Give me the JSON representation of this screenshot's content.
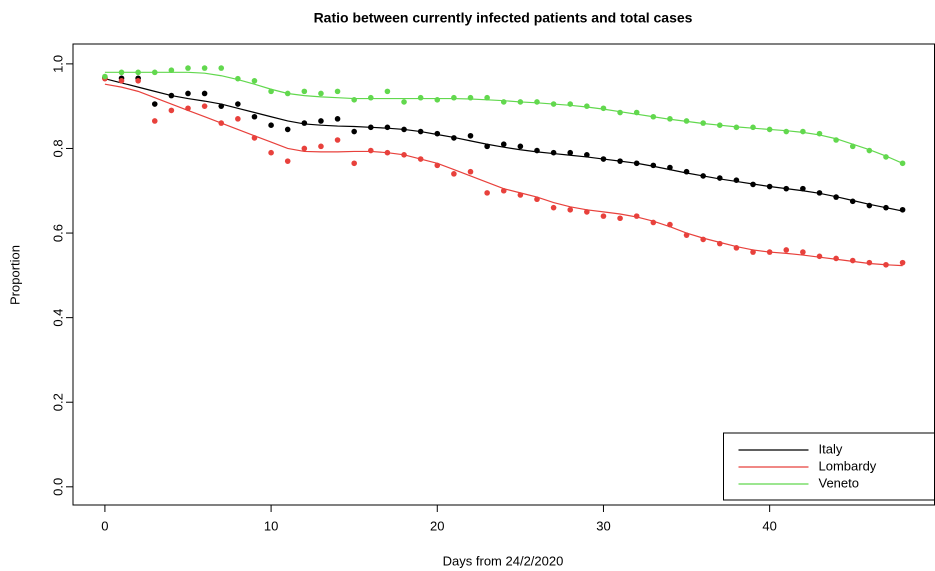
{
  "chart_data": {
    "type": "scatter",
    "title": "Ratio between currently infected patients and total cases",
    "x_label": "Days from 24/2/2020",
    "y_label": "Proportion",
    "x": [
      0,
      1,
      2,
      3,
      4,
      5,
      6,
      7,
      8,
      9,
      10,
      11,
      12,
      13,
      14,
      15,
      16,
      17,
      18,
      19,
      20,
      21,
      22,
      23,
      24,
      25,
      26,
      27,
      28,
      29,
      30,
      31,
      32,
      33,
      34,
      35,
      36,
      37,
      38,
      39,
      40,
      41,
      42,
      43,
      44,
      45,
      46,
      47,
      48
    ],
    "xlim": [
      -1.92,
      49.92
    ],
    "xticks": [
      0,
      10,
      20,
      30,
      40
    ],
    "ylim": [
      -0.043,
      1.047
    ],
    "yticks": [
      {
        "value": 0,
        "label": "0.0"
      },
      0.2,
      0.4,
      0.6,
      0.8,
      {
        "value": 1,
        "label": "1.0"
      }
    ],
    "legend": "bottom-right",
    "series": [
      {
        "name": "Italy",
        "color": "#000000",
        "values": [
          0.967,
          0.966,
          0.966,
          0.905,
          0.925,
          0.93,
          0.93,
          0.9,
          0.905,
          0.875,
          0.855,
          0.845,
          0.86,
          0.865,
          0.87,
          0.84,
          0.85,
          0.85,
          0.845,
          0.84,
          0.835,
          0.825,
          0.83,
          0.805,
          0.81,
          0.805,
          0.795,
          0.79,
          0.79,
          0.785,
          0.775,
          0.77,
          0.765,
          0.76,
          0.755,
          0.745,
          0.735,
          0.73,
          0.725,
          0.715,
          0.71,
          0.705,
          0.705,
          0.695,
          0.685,
          0.675,
          0.665,
          0.66,
          0.655
        ],
        "fit": [
          0.965,
          0.955,
          0.945,
          0.935,
          0.925,
          0.918,
          0.912,
          0.905,
          0.895,
          0.885,
          0.875,
          0.865,
          0.858,
          0.855,
          0.853,
          0.852,
          0.85,
          0.848,
          0.845,
          0.84,
          0.833,
          0.826,
          0.818,
          0.81,
          0.803,
          0.797,
          0.792,
          0.788,
          0.784,
          0.78,
          0.775,
          0.77,
          0.765,
          0.758,
          0.75,
          0.742,
          0.735,
          0.728,
          0.722,
          0.716,
          0.71,
          0.705,
          0.7,
          0.694,
          0.686,
          0.677,
          0.668,
          0.66,
          0.652
        ]
      },
      {
        "name": "Lombardy",
        "color": "#e8413c",
        "values": [
          0.965,
          0.96,
          0.96,
          0.865,
          0.89,
          0.895,
          0.9,
          0.86,
          0.87,
          0.825,
          0.79,
          0.77,
          0.8,
          0.805,
          0.82,
          0.765,
          0.795,
          0.79,
          0.785,
          0.775,
          0.76,
          0.74,
          0.745,
          0.695,
          0.7,
          0.69,
          0.68,
          0.66,
          0.655,
          0.65,
          0.64,
          0.635,
          0.64,
          0.625,
          0.62,
          0.595,
          0.585,
          0.575,
          0.565,
          0.555,
          0.555,
          0.56,
          0.555,
          0.545,
          0.54,
          0.535,
          0.53,
          0.525,
          0.53
        ],
        "fit": [
          0.952,
          0.945,
          0.935,
          0.92,
          0.905,
          0.89,
          0.875,
          0.86,
          0.845,
          0.83,
          0.815,
          0.8,
          0.793,
          0.792,
          0.792,
          0.793,
          0.793,
          0.79,
          0.785,
          0.775,
          0.765,
          0.75,
          0.735,
          0.72,
          0.705,
          0.695,
          0.685,
          0.672,
          0.662,
          0.655,
          0.65,
          0.645,
          0.638,
          0.628,
          0.615,
          0.6,
          0.588,
          0.578,
          0.568,
          0.56,
          0.555,
          0.552,
          0.548,
          0.543,
          0.538,
          0.533,
          0.528,
          0.525,
          0.523
        ]
      },
      {
        "name": "Veneto",
        "color": "#62d84e",
        "values": [
          0.97,
          0.98,
          0.98,
          0.98,
          0.985,
          0.99,
          0.99,
          0.99,
          0.965,
          0.96,
          0.935,
          0.93,
          0.935,
          0.93,
          0.935,
          0.915,
          0.92,
          0.935,
          0.91,
          0.92,
          0.915,
          0.92,
          0.92,
          0.92,
          0.91,
          0.91,
          0.91,
          0.905,
          0.905,
          0.9,
          0.895,
          0.885,
          0.885,
          0.875,
          0.87,
          0.865,
          0.86,
          0.855,
          0.85,
          0.85,
          0.845,
          0.84,
          0.84,
          0.835,
          0.82,
          0.805,
          0.795,
          0.78,
          0.765
        ],
        "fit": [
          0.98,
          0.98,
          0.98,
          0.98,
          0.98,
          0.98,
          0.978,
          0.972,
          0.963,
          0.952,
          0.94,
          0.93,
          0.925,
          0.922,
          0.92,
          0.918,
          0.918,
          0.918,
          0.918,
          0.918,
          0.918,
          0.918,
          0.917,
          0.915,
          0.913,
          0.91,
          0.908,
          0.905,
          0.902,
          0.898,
          0.893,
          0.887,
          0.881,
          0.875,
          0.869,
          0.864,
          0.859,
          0.855,
          0.851,
          0.848,
          0.845,
          0.842,
          0.838,
          0.832,
          0.823,
          0.81,
          0.797,
          0.782,
          0.765
        ]
      }
    ]
  }
}
